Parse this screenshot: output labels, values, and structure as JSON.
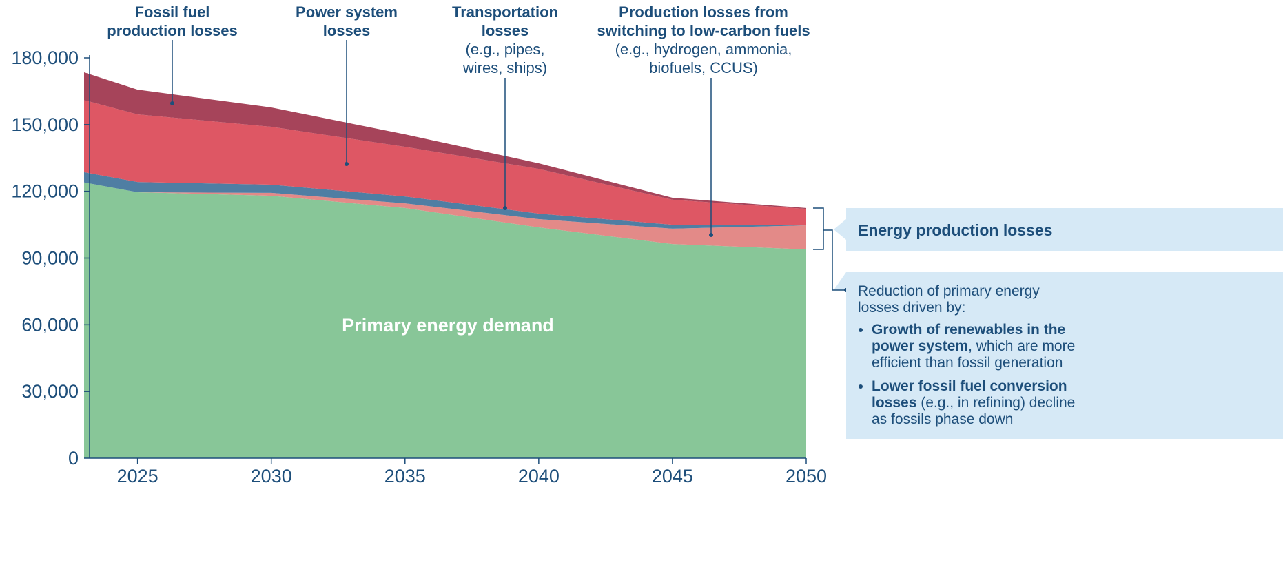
{
  "chart_data": {
    "type": "stacked_area",
    "x": [
      2023,
      2025,
      2030,
      2035,
      2040,
      2045,
      2050
    ],
    "xlim": [
      2023,
      2050
    ],
    "xticks": [
      2025,
      2030,
      2035,
      2040,
      2045,
      2050
    ],
    "ylim": [
      0,
      180000
    ],
    "yticks": [
      0,
      {
        "value": 30000,
        "label": "30,000"
      },
      {
        "value": 60000,
        "label": "60,000"
      },
      {
        "value": 90000,
        "label": "90,000"
      },
      {
        "value": 120000,
        "label": "120,000"
      },
      {
        "value": 150000,
        "label": "150,000"
      },
      {
        "value": 180000,
        "label": "180,000"
      }
    ],
    "series": [
      {
        "name": "Primary energy demand",
        "color": "#88c698",
        "values": [
          124000,
          119600,
          118000,
          112500,
          103800,
          96300,
          93900
        ]
      },
      {
        "name": "Production losses from switching to low-carbon fuels",
        "note": "(e.g., hydrogen, ammonia, biofuels, CCUS)",
        "color": "#e38a88",
        "values": [
          0,
          0,
          1300,
          2100,
          3700,
          6900,
          10800
        ]
      },
      {
        "name": "Transportation losses",
        "note": "(e.g., pipes, wires, ships)",
        "color": "#4f7ea3",
        "values": [
          4600,
          4600,
          3700,
          3100,
          2500,
          1800,
          300
        ]
      },
      {
        "name": "Power system losses",
        "color": "#de5764",
        "values": [
          32400,
          30400,
          26000,
          22300,
          20100,
          11200,
          7100
        ]
      },
      {
        "name": "Fossil fuel production losses",
        "color": "#a6445a",
        "values": [
          12500,
          11100,
          8700,
          5600,
          2500,
          900,
          400
        ]
      }
    ],
    "panel": {
      "title": "Energy production losses",
      "intro": "Reduction of primary energy losses driven by:",
      "bullets": [
        {
          "bold": "Growth of renewables in the power system",
          "text": ", which are more efficient than fossil generation"
        },
        {
          "bold": "Lower fossil fuel conversion losses",
          "text": " (e.g., in refining) decline as fossils phase down"
        }
      ]
    }
  }
}
